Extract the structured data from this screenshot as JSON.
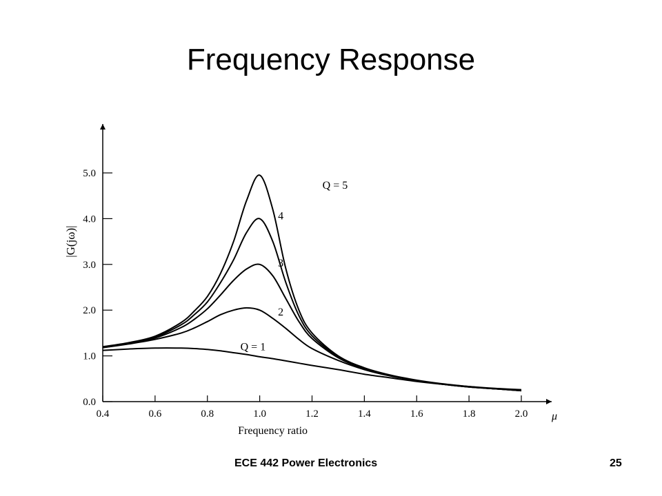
{
  "slide": {
    "title": "Frequency Response",
    "footer_course": "ECE 442 Power Electronics",
    "page_number": "25"
  },
  "chart_data": {
    "type": "line",
    "title": "",
    "xlabel": "Frequency ratio",
    "x_axis_symbol": "μ",
    "ylabel": "|G(jω)|",
    "xlim": [
      0.4,
      2.0
    ],
    "ylim": [
      0.0,
      5.0
    ],
    "x_ticks": [
      "0.4",
      "0.6",
      "0.8",
      "1.0",
      "1.2",
      "1.4",
      "1.6",
      "1.8",
      "2.0"
    ],
    "y_ticks": [
      "0.0",
      "1.0",
      "2.0",
      "3.0",
      "4.0",
      "5.0"
    ],
    "grid": false,
    "line_color": "#000000",
    "x": [
      0.4,
      0.5,
      0.6,
      0.7,
      0.75,
      0.8,
      0.85,
      0.9,
      0.95,
      1.0,
      1.05,
      1.1,
      1.15,
      1.2,
      1.3,
      1.4,
      1.5,
      1.6,
      1.7,
      1.8,
      1.9,
      2.0
    ],
    "series": [
      {
        "label": "Q = 1",
        "values": [
          1.12,
          1.15,
          1.17,
          1.17,
          1.16,
          1.14,
          1.11,
          1.07,
          1.03,
          0.98,
          0.94,
          0.89,
          0.84,
          0.79,
          0.7,
          0.6,
          0.52,
          0.44,
          0.38,
          0.33,
          0.29,
          0.26
        ]
      },
      {
        "label": "2",
        "values": [
          1.18,
          1.26,
          1.36,
          1.5,
          1.61,
          1.75,
          1.9,
          2.0,
          2.05,
          2.0,
          1.82,
          1.6,
          1.36,
          1.16,
          0.9,
          0.7,
          0.56,
          0.46,
          0.38,
          0.32,
          0.28,
          0.24
        ]
      },
      {
        "label": "3",
        "values": [
          1.18,
          1.27,
          1.39,
          1.62,
          1.8,
          2.03,
          2.33,
          2.65,
          2.9,
          3.0,
          2.75,
          2.25,
          1.75,
          1.38,
          0.96,
          0.72,
          0.57,
          0.46,
          0.38,
          0.32,
          0.28,
          0.24
        ]
      },
      {
        "label": "4",
        "values": [
          1.19,
          1.28,
          1.41,
          1.68,
          1.9,
          2.18,
          2.6,
          3.1,
          3.7,
          4.0,
          3.5,
          2.6,
          1.88,
          1.44,
          0.98,
          0.73,
          0.57,
          0.46,
          0.38,
          0.32,
          0.28,
          0.24
        ]
      },
      {
        "label": "Q = 5",
        "values": [
          1.2,
          1.29,
          1.43,
          1.73,
          1.98,
          2.3,
          2.8,
          3.5,
          4.4,
          4.95,
          4.2,
          2.9,
          2.0,
          1.5,
          1.0,
          0.74,
          0.58,
          0.47,
          0.39,
          0.33,
          0.28,
          0.25
        ]
      }
    ]
  }
}
